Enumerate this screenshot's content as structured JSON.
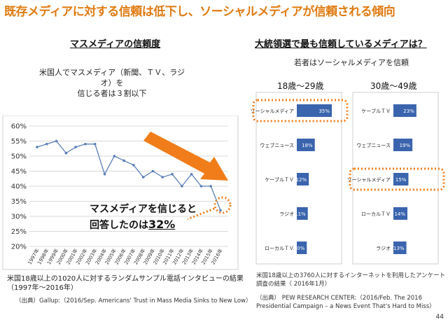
{
  "title": "既存メディアに対する信頼は低下し、ソーシャルメディアが信頼される傾向",
  "left": {
    "heading": "マスメディアの信頼度",
    "subtitle_line1": "米国人でマスメディア（新聞、ＴＶ、ラジオ）を",
    "subtitle_line2": "信じる者は３割以下",
    "callout_line1": "マスメディアを信じると",
    "callout_line2_prefix": "回答したのは",
    "callout_value": "32%",
    "note_line1": "米国18歳以上の1020人に対するランダムサンプル電話インタビューの結果",
    "note_line2": "（1997年～2016年）",
    "source": "（出典）Gallup:（2016/Sep. Americans' Trust in Mass Media Sinks to New Low）"
  },
  "right": {
    "heading": "大統領選で最も信頼しているメディアは？",
    "subtitle": "若者はソーシャルメディアを信頼",
    "col1_label": "18歳～29歳",
    "col2_label": "30歳～49歳",
    "note_line1": "米国18歳以上の3760人に対するインターネットを利用したアンケート",
    "note_line2": "調査の結果（ 2016年1月）",
    "source_line1": "（出典） PEW RESEARCH CENTER:（2016/Feb. The 2016",
    "source_line2": "Presidential Campaign – a News Event That's Hard to Miss）"
  },
  "page_number": "44",
  "colors": {
    "title": "#e07a10",
    "line": "#5b7fb8",
    "bar": "#3a64ad",
    "arrow": "#f07d1a",
    "dotted": "#f07d1a"
  },
  "chart_data": [
    {
      "type": "line",
      "x": [
        "1997年",
        "1998年",
        "1999年",
        "2000年",
        "2001年",
        "2002年",
        "2003年",
        "2004年",
        "2005年",
        "2006年",
        "2007年",
        "2008年",
        "2009年",
        "2010年",
        "2011年",
        "2012年",
        "2013年",
        "2014年",
        "2015年",
        "2016年"
      ],
      "y_tick_labels": [
        "20%",
        "25%",
        "30%",
        "35%",
        "40%",
        "45%",
        "50%",
        "55%",
        "60%"
      ],
      "series": [
        {
          "values": [
            53,
            54,
            55,
            51,
            53,
            54,
            54,
            44,
            50,
            48.5,
            47,
            43,
            45,
            43,
            44,
            40,
            44,
            40,
            40,
            32
          ]
        }
      ],
      "ylim": [
        20,
        60
      ],
      "grid": true
    },
    {
      "type": "bar",
      "orientation": "horizontal",
      "categories": [
        "ソーシャルメディア",
        "ウェブニュース",
        "ケーブルＴＶ",
        "ラジオ",
        "ローカルＴＶ"
      ],
      "values": [
        35,
        18,
        12,
        11,
        10
      ],
      "value_labels": [
        "35%",
        "18%",
        "12%",
        "11%",
        "10%"
      ],
      "highlight": "ソーシャルメディア"
    },
    {
      "type": "bar",
      "orientation": "horizontal",
      "categories": [
        "ケーブルＴＶ",
        "ウェブニュース",
        "ソーシャルメディア",
        "ローカルＴＶ",
        "ラジオ"
      ],
      "values": [
        23,
        19,
        15,
        14,
        13
      ],
      "value_labels": [
        "23%",
        "19%",
        "15%",
        "14%",
        "13%"
      ],
      "highlight": "ソーシャルメディア"
    }
  ]
}
